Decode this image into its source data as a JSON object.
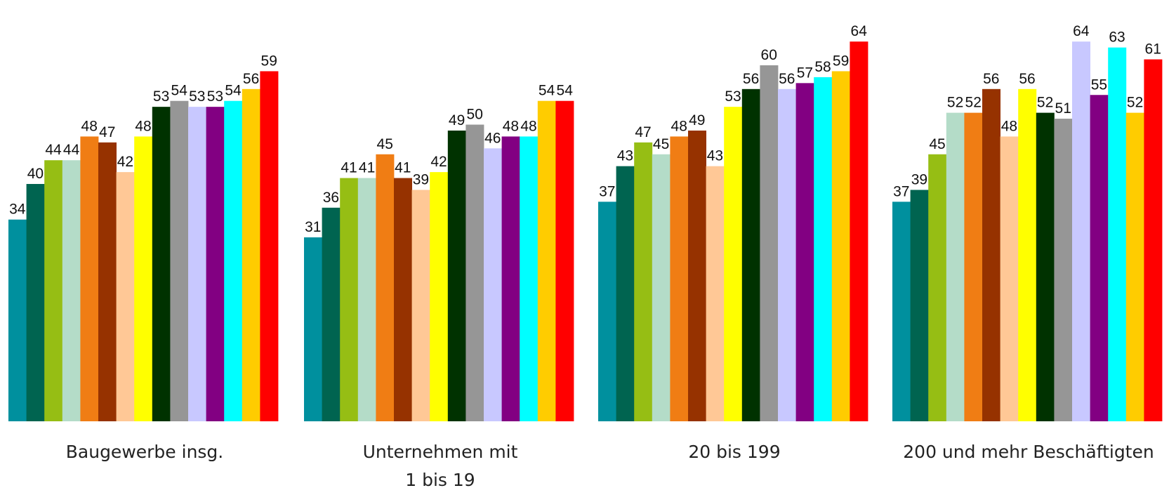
{
  "chart_data": {
    "type": "bar",
    "title": "",
    "xlabel": "",
    "ylabel": "",
    "ylim": [
      0,
      66
    ],
    "grid": false,
    "legend": "none",
    "categories": [
      [
        "Baugewerbe insg."
      ],
      [
        "Unternehmen mit",
        "1 bis 19"
      ],
      [
        "20 bis 199"
      ],
      [
        "200 und mehr Beschäftigten"
      ]
    ],
    "series": [
      {
        "color": "#00909E",
        "values": [
          34,
          31,
          37,
          37
        ]
      },
      {
        "color": "#006450",
        "values": [
          40,
          36,
          43,
          39
        ]
      },
      {
        "color": "#96BE14",
        "values": [
          44,
          41,
          47,
          45
        ]
      },
      {
        "color": "#B4DCC8",
        "values": [
          44,
          41,
          45,
          52
        ]
      },
      {
        "color": "#F07D14",
        "values": [
          48,
          45,
          48,
          52
        ]
      },
      {
        "color": "#963200",
        "values": [
          47,
          41,
          49,
          56
        ]
      },
      {
        "color": "#FFC896",
        "values": [
          42,
          39,
          43,
          48
        ]
      },
      {
        "color": "#FFFF00",
        "values": [
          48,
          42,
          53,
          56
        ]
      },
      {
        "color": "#003200",
        "values": [
          53,
          49,
          56,
          52
        ]
      },
      {
        "color": "#969696",
        "values": [
          54,
          50,
          60,
          51
        ]
      },
      {
        "color": "#C8C8FF",
        "values": [
          53,
          46,
          56,
          64
        ]
      },
      {
        "color": "#820082",
        "values": [
          53,
          48,
          57,
          55
        ]
      },
      {
        "color": "#00FFFF",
        "values": [
          54,
          48,
          58,
          63
        ]
      },
      {
        "color": "#FFCC00",
        "values": [
          56,
          54,
          59,
          52
        ]
      },
      {
        "color": "#FF0000",
        "values": [
          59,
          54,
          64,
          61
        ]
      }
    ]
  }
}
